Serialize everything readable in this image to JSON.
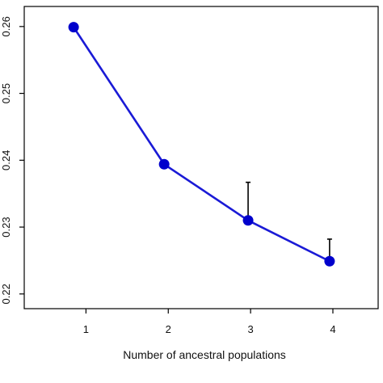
{
  "chart_data": {
    "type": "line",
    "title": "",
    "xlabel": "Number of ancestral populations",
    "ylabel": "",
    "x": [
      0.85,
      1.95,
      2.97,
      3.96
    ],
    "x_ticks": [
      1,
      2,
      3,
      4
    ],
    "x_tick_labels": [
      "1",
      "2",
      "3",
      "4"
    ],
    "xlim": [
      0.25,
      4.55
    ],
    "y_ticks": [
      0.22,
      0.23,
      0.24,
      0.25,
      0.26
    ],
    "y_tick_labels": [
      "0.22",
      "0.23",
      "0.24",
      "0.25",
      "0.26"
    ],
    "ylim": [
      0.2178,
      0.263
    ],
    "grid": false,
    "series": [
      {
        "values": [
          0.2599,
          0.2394,
          0.231,
          0.2249
        ],
        "error_upper": [
          null,
          null,
          0.2367,
          0.2282
        ]
      }
    ],
    "colors": {
      "line": "#1a1ad6",
      "marker": "#0000cc",
      "error_bar": "#000000",
      "frame": "#000000"
    }
  }
}
